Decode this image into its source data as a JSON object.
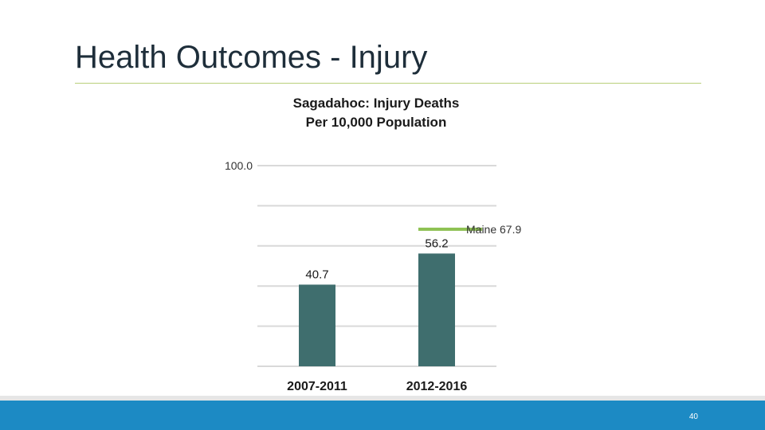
{
  "slide": {
    "title": "Health Outcomes - Injury",
    "page_number": "40"
  },
  "colors": {
    "bar": "#3f6e6e",
    "gridline": "#d9d9d9",
    "maine_line": "#8dc152",
    "footer": "#1c8ac4",
    "title_rule": "#b9cf7a"
  },
  "chart_data": {
    "type": "bar",
    "title_lines": [
      "Sagadahoc: Injury Deaths",
      "Per 10,000 Population"
    ],
    "categories": [
      "2007-2011",
      "2012-2016"
    ],
    "values": [
      40.7,
      56.2
    ],
    "value_labels": [
      "40.7",
      "56.2"
    ],
    "ylim": [
      0,
      100
    ],
    "ytick_step": 20,
    "ytick_labels_shown": [
      "100.0"
    ],
    "reference_lines": [
      {
        "label": "Maine 67.9",
        "value": 67.9,
        "category_index": 1
      }
    ],
    "xlabel": "",
    "ylabel": ""
  }
}
